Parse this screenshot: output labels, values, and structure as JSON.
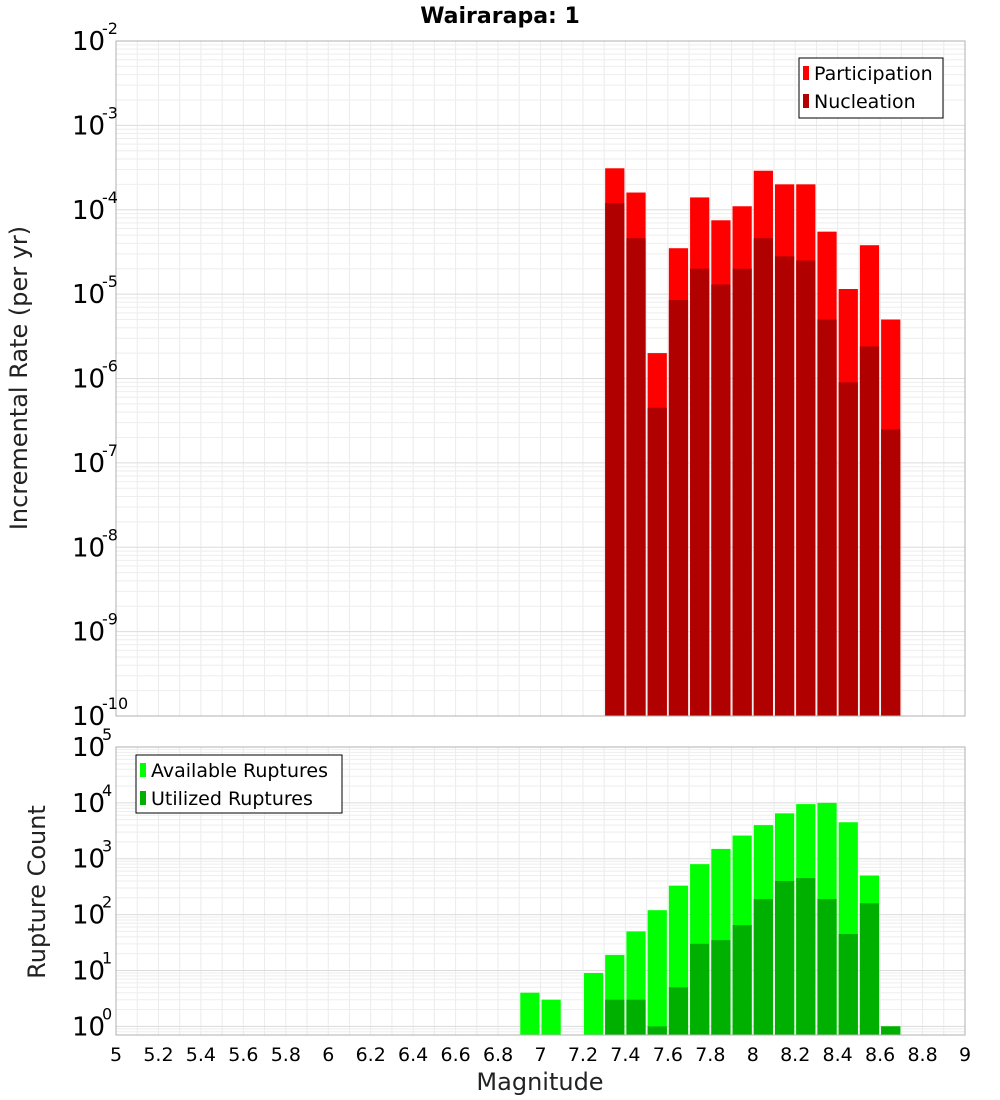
{
  "title": "Wairarapa: 1",
  "chart_data": [
    {
      "type": "bar",
      "ylabel": "Incremental Rate (per yr)",
      "xlabel": "",
      "yscale": "log",
      "ylim": [
        1e-10,
        0.01
      ],
      "xlim": [
        5,
        9
      ],
      "legend_position": "top-right",
      "x": [
        7.35,
        7.45,
        7.55,
        7.65,
        7.75,
        7.85,
        7.95,
        8.05,
        8.15,
        8.25,
        8.35,
        8.45,
        8.55,
        8.65
      ],
      "series": [
        {
          "name": "Participation",
          "color": "#ff0000",
          "values": [
            0.00031,
            0.00016,
            2e-06,
            3.5e-05,
            0.00014,
            7.5e-05,
            0.00011,
            0.00029,
            0.0002,
            0.0002,
            5.5e-05,
            1.15e-05,
            3.8e-05,
            5e-06
          ]
        },
        {
          "name": "Nucleation",
          "color": "#b00000",
          "values": [
            0.00012,
            4.6e-05,
            4.5e-07,
            8.5e-06,
            2e-05,
            1.3e-05,
            2e-05,
            4.6e-05,
            2.8e-05,
            2.5e-05,
            5e-06,
            9e-07,
            2.4e-06,
            2.5e-07
          ]
        }
      ]
    },
    {
      "type": "bar",
      "ylabel": "Rupture Count",
      "xlabel": "Magnitude",
      "yscale": "log",
      "ylim": [
        0.7,
        100000
      ],
      "xlim": [
        5,
        9
      ],
      "legend_position": "top-left",
      "x_ticks": [
        "5",
        "5.2",
        "5.4",
        "5.6",
        "5.8",
        "6",
        "6.2",
        "6.4",
        "6.6",
        "6.8",
        "7",
        "7.2",
        "7.4",
        "7.6",
        "7.8",
        "8",
        "8.2",
        "8.4",
        "8.6",
        "8.8",
        "9"
      ],
      "x": [
        6.95,
        7.05,
        7.25,
        7.35,
        7.45,
        7.55,
        7.65,
        7.75,
        7.85,
        7.95,
        8.05,
        8.15,
        8.25,
        8.35,
        8.45,
        8.55,
        8.65
      ],
      "series": [
        {
          "name": "Available Ruptures",
          "color": "#00ff00",
          "values": [
            4,
            3,
            9,
            19,
            50,
            120,
            330,
            800,
            1500,
            2600,
            4000,
            6500,
            9500,
            10000,
            4500,
            500,
            1
          ]
        },
        {
          "name": "Utilized Ruptures",
          "color": "#00b000",
          "values": [
            0,
            0,
            0,
            3,
            3,
            1,
            5,
            30,
            35,
            65,
            190,
            400,
            450,
            190,
            45,
            160,
            1
          ]
        }
      ]
    }
  ]
}
